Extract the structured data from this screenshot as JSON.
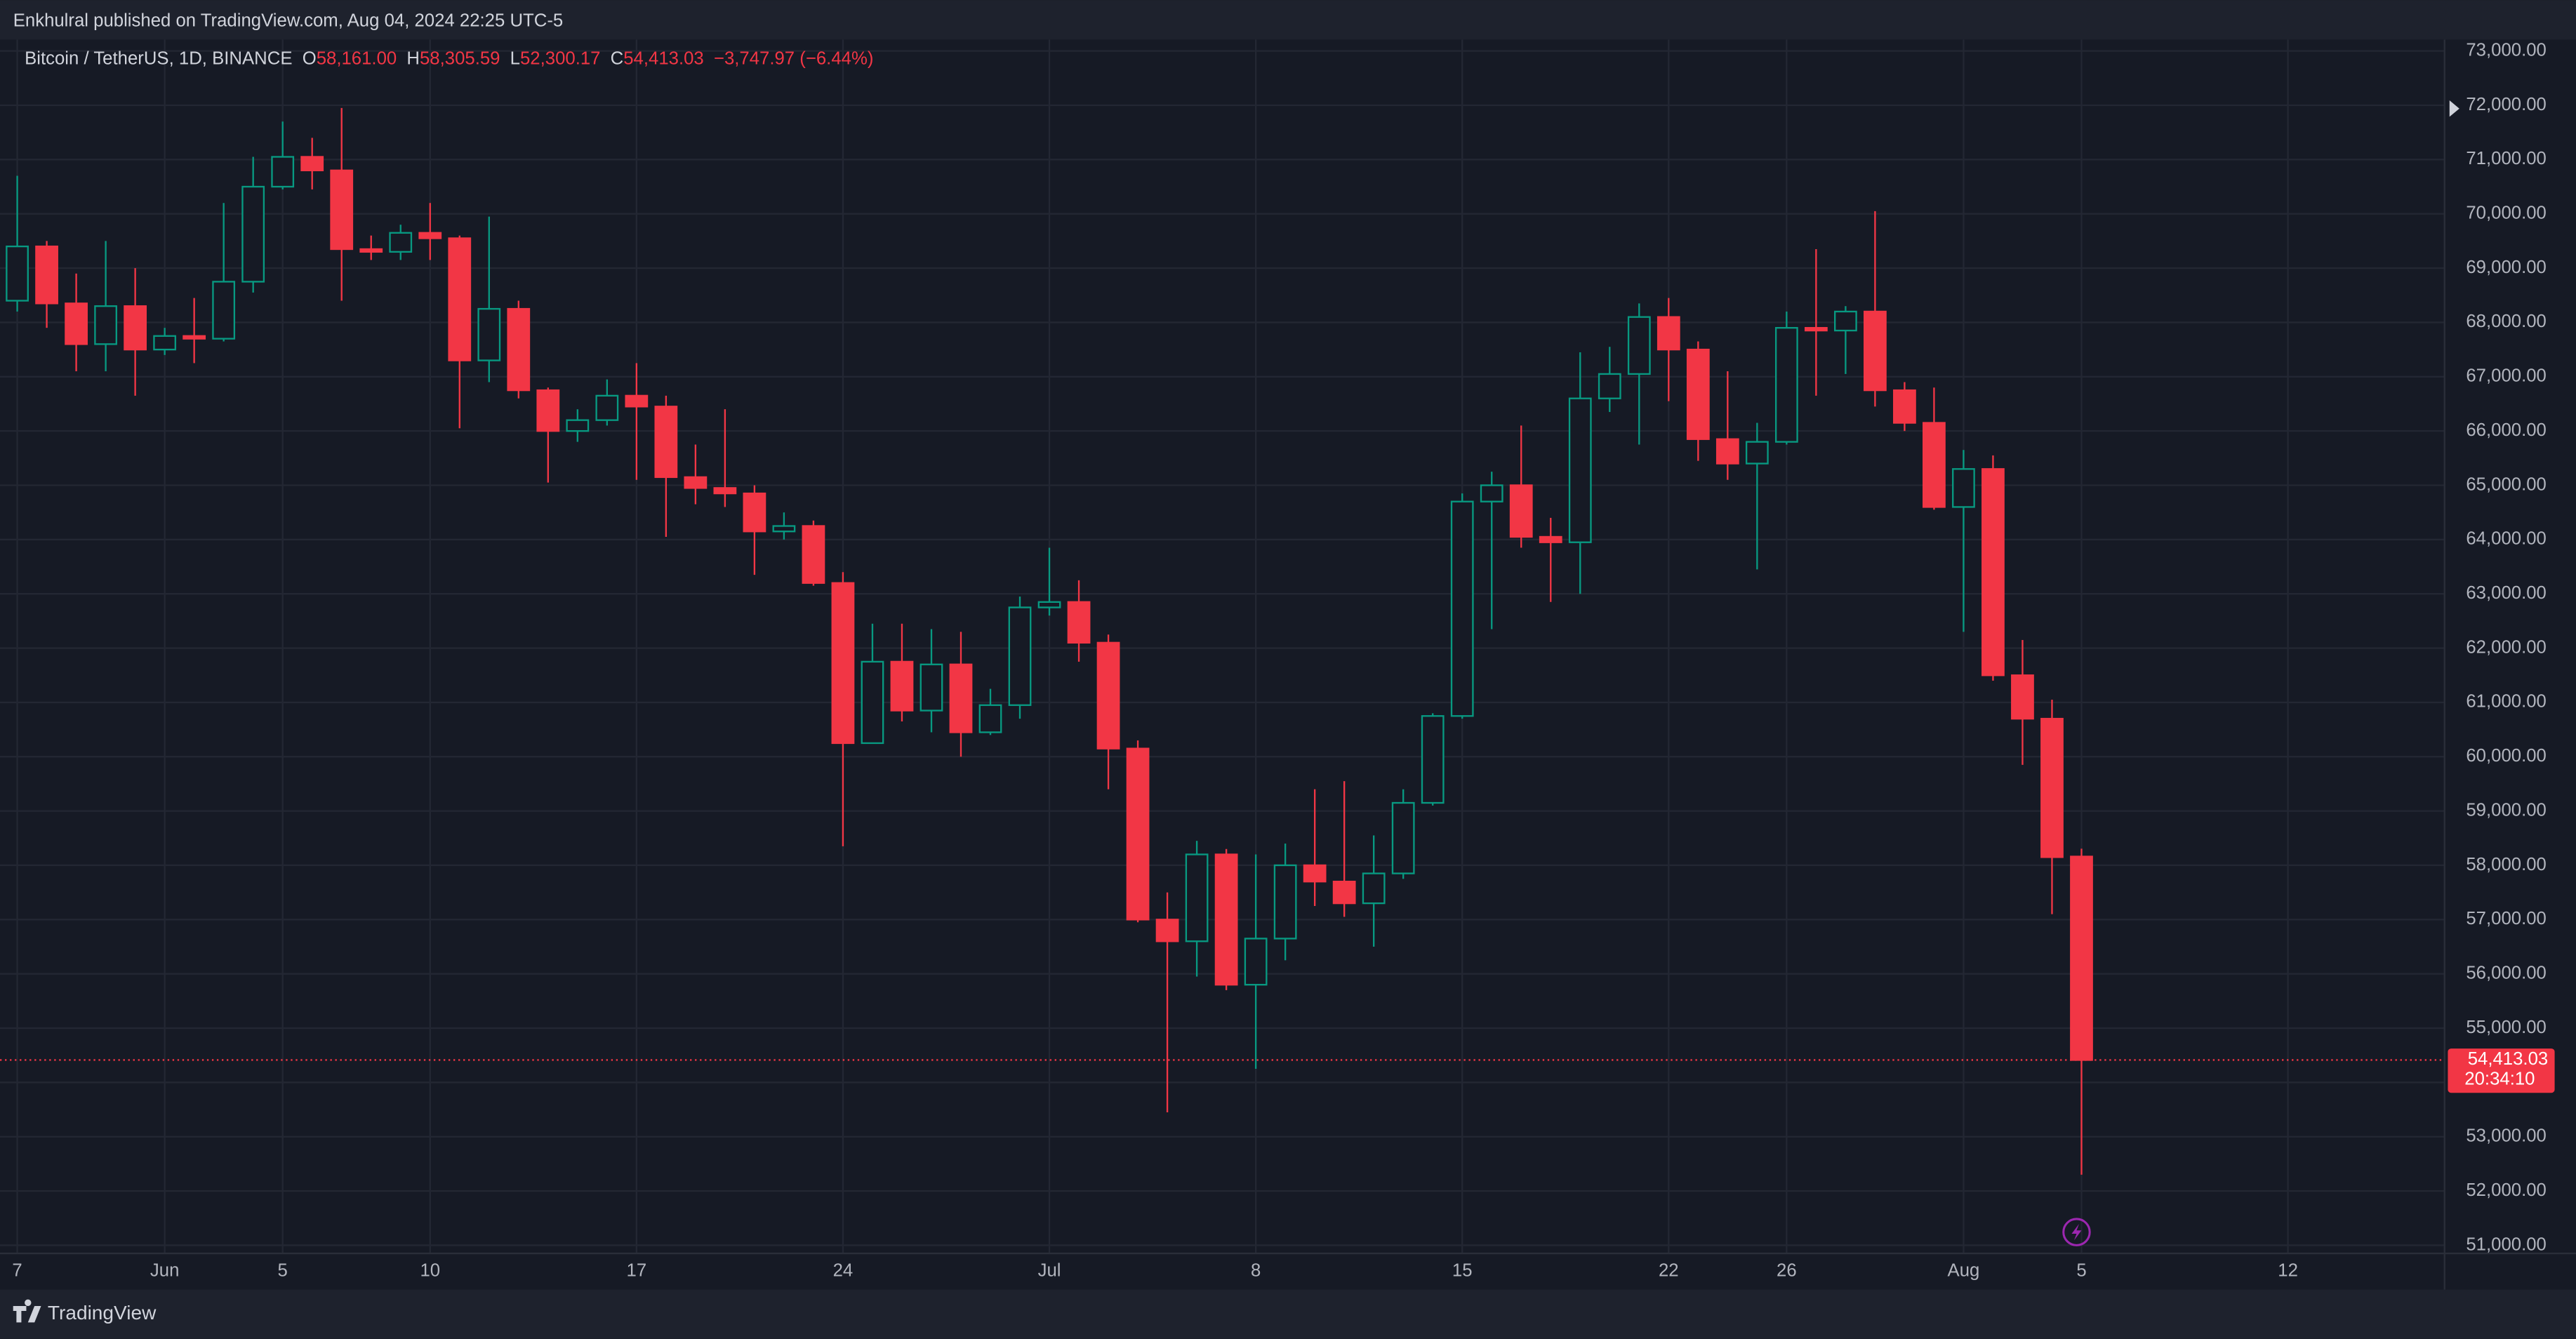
{
  "chart_data": {
    "type": "candlestick",
    "header": {
      "publisher": "Enkhulral published on TradingView.com, Aug 04, 2024 22:25 UTC-5",
      "symbol": "Bitcoin / TetherUS, 1D, BINANCE",
      "o": "O",
      "open": "58,161.00",
      "h": "H",
      "high": "58,305.59",
      "l": "L",
      "low": "52,300.17",
      "c": "C",
      "close": "54,413.03",
      "change": "−3,747.97 (−6.44%)"
    },
    "price_label": "54,413.03",
    "countdown": "20:34:10",
    "footer": "TradingView",
    "up_color": "#089981",
    "down_color": "#f23645",
    "grid": true,
    "categories": [
      "7",
      null,
      null,
      null,
      null,
      "Jun",
      null,
      null,
      null,
      "5",
      null,
      null,
      null,
      null,
      "10",
      null,
      null,
      null,
      null,
      null,
      null,
      "17",
      null,
      null,
      null,
      null,
      null,
      null,
      "24",
      null,
      null,
      null,
      null,
      null,
      null,
      "Jul",
      null,
      null,
      null,
      null,
      null,
      null,
      "8",
      null,
      null,
      null,
      null,
      null,
      null,
      "15",
      null,
      null,
      null,
      null,
      null,
      null,
      "22",
      null,
      null,
      null,
      "26",
      null,
      null,
      null,
      null,
      null,
      "Aug",
      null,
      null,
      null,
      "5",
      null,
      null,
      null,
      null,
      null,
      null,
      "12",
      null,
      null,
      null,
      null,
      null
    ],
    "open": [
      68400,
      69400,
      68350,
      67600,
      68300,
      67500,
      67750,
      67700,
      68750,
      70500,
      71050,
      70800,
      69350,
      69300,
      69650,
      69550,
      67300,
      68250,
      66750,
      66000,
      66200,
      66650,
      66450,
      65150,
      64950,
      64850,
      64150,
      64250,
      63200,
      60250,
      61750,
      60850,
      61700,
      60450,
      60950,
      62750,
      62850,
      62100,
      60150,
      57000,
      56600,
      58200,
      55800,
      56650,
      58000,
      57700,
      57300,
      57850,
      59150,
      60750,
      64700,
      65000,
      64050,
      63950,
      66600,
      67050,
      68100,
      67500,
      65850,
      65400,
      65800,
      67900,
      67850,
      68200,
      66750,
      66150,
      64600,
      65300,
      61500,
      60700,
      58161,
      null,
      null,
      null,
      null,
      null,
      null,
      null,
      null,
      null,
      null,
      null,
      null
    ],
    "high": [
      70700,
      69500,
      68900,
      69500,
      69000,
      67900,
      68450,
      70200,
      71050,
      71700,
      71400,
      71950,
      69600,
      69800,
      70200,
      69600,
      69950,
      68400,
      66800,
      66400,
      66950,
      67250,
      66650,
      65750,
      66400,
      65000,
      64500,
      64350,
      63400,
      62450,
      62450,
      62350,
      62300,
      61250,
      62950,
      63850,
      63250,
      62250,
      60300,
      57500,
      58450,
      58300,
      58200,
      58400,
      59400,
      59550,
      58550,
      59400,
      60800,
      64850,
      65250,
      66100,
      64400,
      67450,
      67550,
      68350,
      68450,
      67650,
      67100,
      66150,
      68200,
      69350,
      68300,
      70050,
      66900,
      66800,
      65650,
      65550,
      62150,
      61050,
      58305.59,
      null,
      null,
      null,
      null,
      null,
      null,
      null,
      null,
      null,
      null,
      null,
      null
    ],
    "low": [
      68200,
      67900,
      67100,
      67100,
      66650,
      67400,
      67250,
      67650,
      68550,
      70450,
      70450,
      68400,
      69150,
      69150,
      69150,
      66050,
      66900,
      66600,
      65050,
      65800,
      66100,
      65100,
      64050,
      64650,
      64600,
      63350,
      64000,
      63150,
      58350,
      60250,
      60650,
      60450,
      60000,
      60400,
      60700,
      62600,
      61750,
      59400,
      56950,
      53450,
      55950,
      55700,
      54250,
      56250,
      57250,
      57050,
      56500,
      57750,
      59100,
      60700,
      62350,
      63850,
      62850,
      63000,
      66350,
      65750,
      66550,
      65450,
      65100,
      63450,
      65750,
      66650,
      67050,
      66450,
      66000,
      64550,
      62300,
      61400,
      59850,
      57100,
      52300.17,
      null,
      null,
      null,
      null,
      null,
      null,
      null,
      null,
      null,
      null,
      null,
      null
    ],
    "close": [
      69400,
      68350,
      67600,
      68300,
      67500,
      67750,
      67700,
      68750,
      70500,
      71050,
      70800,
      69350,
      69300,
      69650,
      69550,
      67300,
      68250,
      66750,
      66000,
      66200,
      66650,
      66450,
      65150,
      64950,
      64850,
      64150,
      64250,
      63200,
      60250,
      61750,
      60850,
      61700,
      60450,
      60950,
      62750,
      62850,
      62100,
      60150,
      57000,
      56600,
      58200,
      55800,
      56650,
      58000,
      57700,
      57300,
      57850,
      59150,
      60750,
      64700,
      65000,
      64050,
      63950,
      66600,
      67050,
      68100,
      67500,
      65850,
      65400,
      65800,
      67900,
      67850,
      68200,
      66750,
      66150,
      64600,
      65300,
      61500,
      60700,
      58150,
      54413.03,
      null,
      null,
      null,
      null,
      null,
      null,
      null,
      null,
      null,
      null,
      null,
      null
    ],
    "ylim": [
      50850,
      73210
    ],
    "yticks": [
      {
        "value": 51000,
        "label": "51,000.00"
      },
      {
        "value": 52000,
        "label": "52,000.00"
      },
      {
        "value": 53000,
        "label": "53,000.00"
      },
      {
        "value": 54000,
        "label": "54,000.00"
      },
      {
        "value": 55000,
        "label": "55,000.00"
      },
      {
        "value": 56000,
        "label": "56,000.00"
      },
      {
        "value": 57000,
        "label": "57,000.00"
      },
      {
        "value": 58000,
        "label": "58,000.00"
      },
      {
        "value": 59000,
        "label": "59,000.00"
      },
      {
        "value": 60000,
        "label": "60,000.00"
      },
      {
        "value": 61000,
        "label": "61,000.00"
      },
      {
        "value": 62000,
        "label": "62,000.00"
      },
      {
        "value": 63000,
        "label": "63,000.00"
      },
      {
        "value": 64000,
        "label": "64,000.00"
      },
      {
        "value": 65000,
        "label": "65,000.00"
      },
      {
        "value": 66000,
        "label": "66,000.00"
      },
      {
        "value": 67000,
        "label": "67,000.00"
      },
      {
        "value": 68000,
        "label": "68,000.00"
      },
      {
        "value": 69000,
        "label": "69,000.00"
      },
      {
        "value": 70000,
        "label": "70,000.00"
      },
      {
        "value": 71000,
        "label": "71,000.00"
      },
      {
        "value": 72000,
        "label": "72,000.00"
      },
      {
        "value": 73000,
        "label": "73,000.00"
      }
    ]
  }
}
